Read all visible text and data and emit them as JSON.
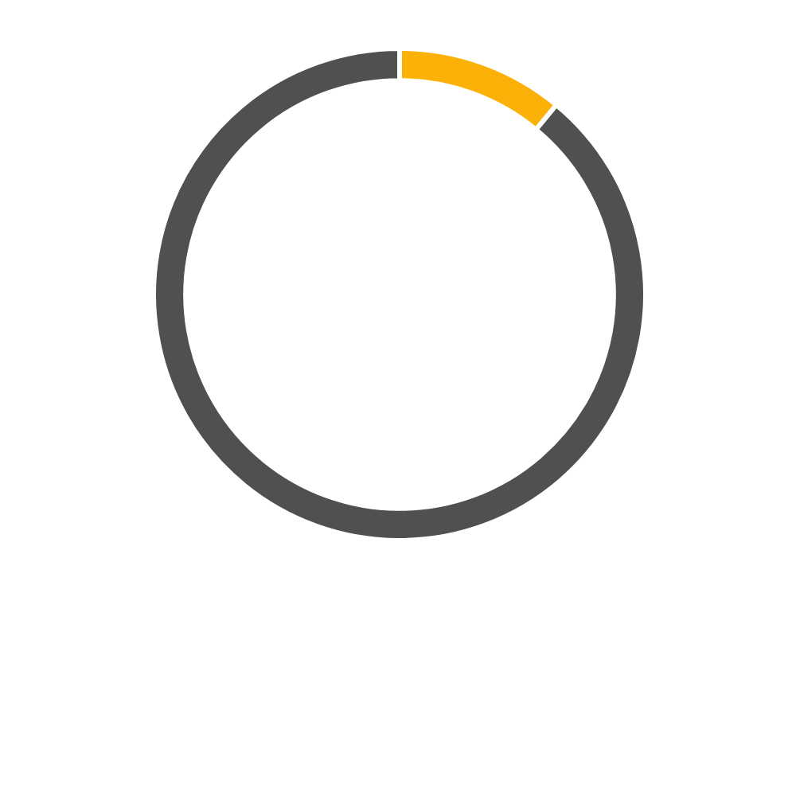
{
  "chart_data": {
    "type": "donut",
    "categories": [
      null,
      null
    ],
    "values": [
      11,
      89
    ],
    "colors": [
      "#fbb107",
      "#505050"
    ]
  }
}
